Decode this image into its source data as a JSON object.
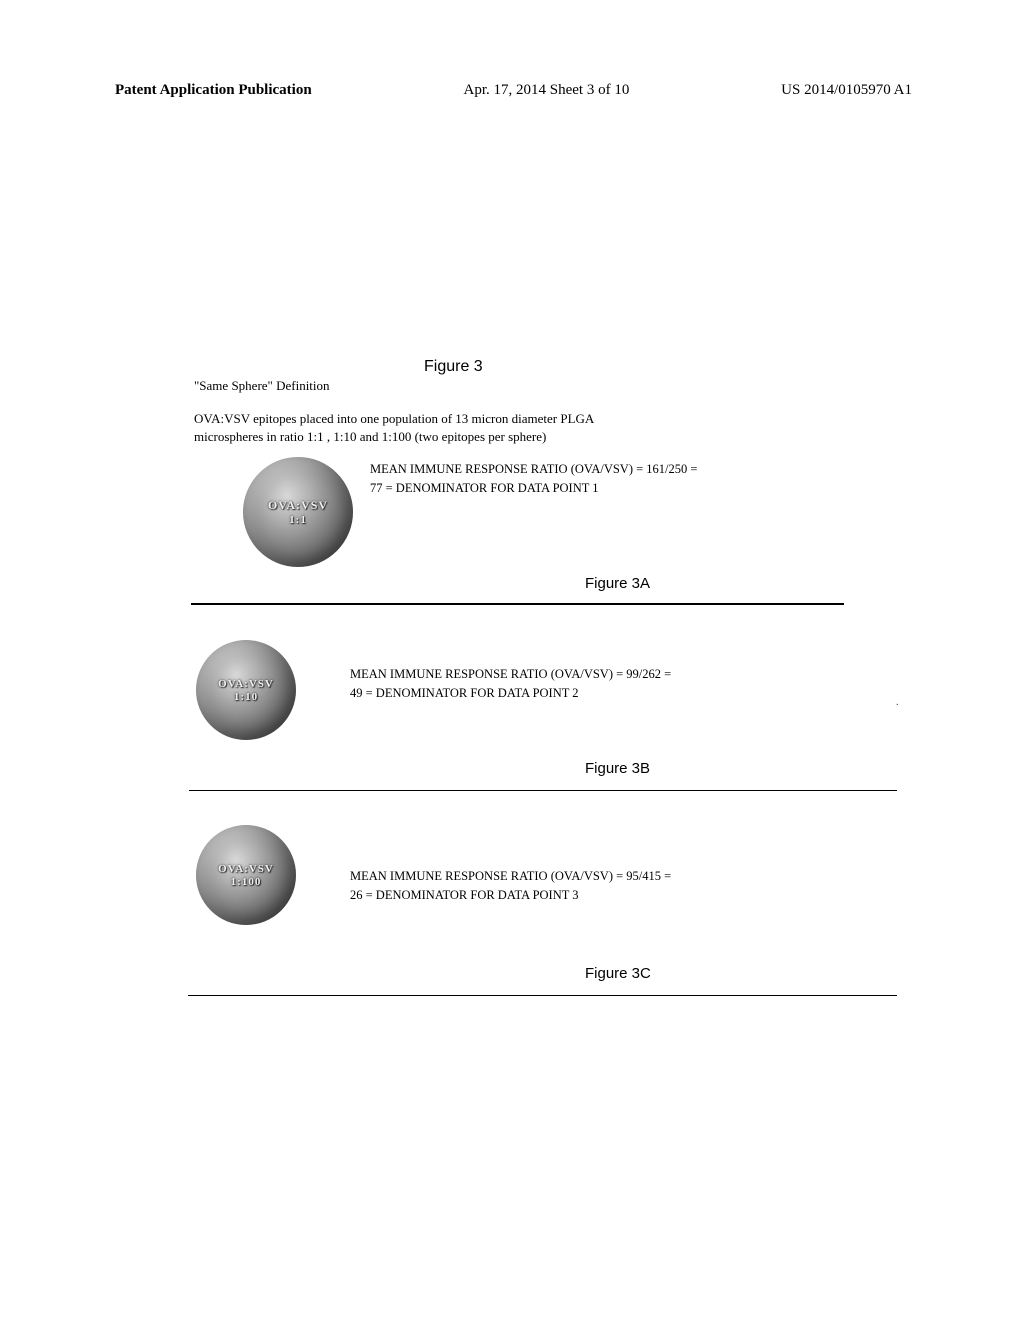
{
  "header": {
    "left": "Patent Application Publication",
    "center": "Apr. 17, 2014  Sheet 3 of 10",
    "right": "US 2014/0105970 A1"
  },
  "figure": {
    "title": "Figure  3",
    "definition": "\"Same Sphere\" Definition",
    "subheading_line1": "OVA:VSV epitopes placed into one population of 13 micron diameter PLGA",
    "subheading_line2": "microspheres in ratio 1:1 , 1:10 and 1:100 (two epitopes per sphere)"
  },
  "sections": {
    "a": {
      "sphere_label": "OVA:VSV",
      "sphere_ratio": "1:1",
      "response_line1": "MEAN IMMUNE RESPONSE RATIO (OVA/VSV) = 161/250 =",
      "response_line2": "77  = DENOMINATOR FOR DATA POINT 1",
      "fig_label": "Figure  3A"
    },
    "b": {
      "sphere_label": "OVA:VSV",
      "sphere_ratio": "1:10",
      "response_line1": "MEAN IMMUNE RESPONSE RATIO (OVA/VSV)  = 99/262 =",
      "response_line2": "49 = DENOMINATOR FOR DATA POINT 2",
      "fig_label": "Figure  3B"
    },
    "c": {
      "sphere_label": "OVA:VSV",
      "sphere_ratio": "1:100",
      "response_line1": "MEAN IMMUNE RESPONSE RATIO (OVA/VSV)  = 95/415 =",
      "response_line2": "26 = DENOMINATOR FOR DATA POINT 3",
      "fig_label": "Figure  3C"
    }
  }
}
